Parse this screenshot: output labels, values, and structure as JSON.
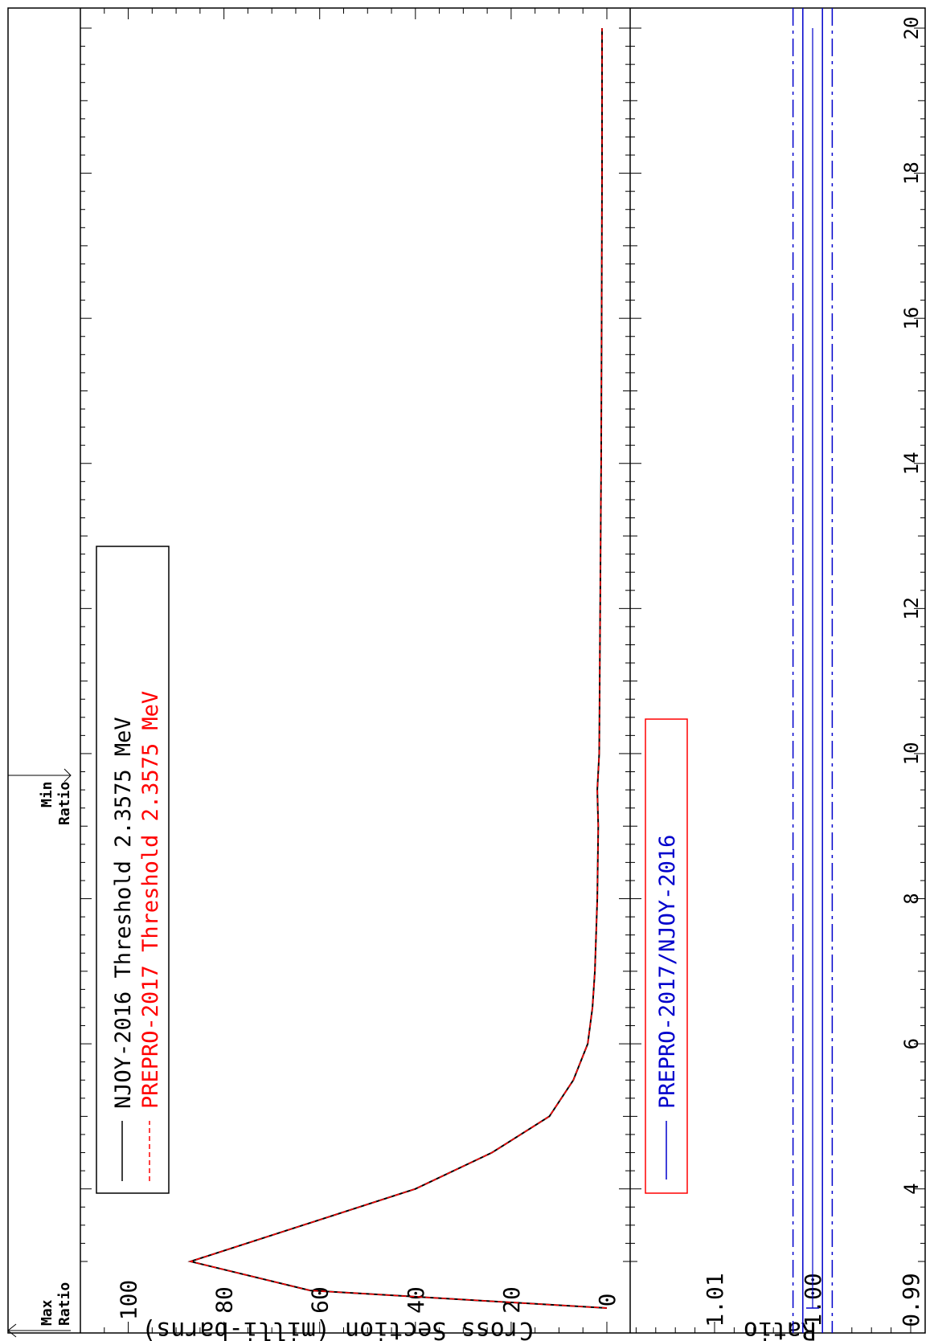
{
  "chart_data": [
    {
      "type": "line",
      "ylabel": "Cross Section (milli-barns)",
      "xlim": [
        2.3575,
        20
      ],
      "ylim": [
        0,
        110
      ],
      "x_ticks": [
        "4",
        "6",
        "8",
        "10",
        "12",
        "14",
        "16",
        "18",
        "20"
      ],
      "y_ticks": [
        "0",
        "20",
        "40",
        "60",
        "80",
        "100"
      ],
      "series": [
        {
          "name": "NJOY-2016 Threshold 2.3575 MeV",
          "color": "#000000",
          "style": "solid",
          "x": [
            2.3575,
            2.6,
            3.0,
            4.0,
            4.5,
            5.0,
            5.5,
            6.0,
            6.5,
            7.0,
            8.0,
            9.0,
            9.5,
            10.0,
            12.0,
            14.0,
            16.0,
            18.0,
            20.0
          ],
          "y": [
            0,
            62,
            87,
            40,
            24,
            12,
            7,
            4,
            3,
            2.5,
            2,
            1.8,
            2,
            1.6,
            1.4,
            1.2,
            1.1,
            1.0,
            1.0
          ]
        },
        {
          "name": "PREPRO-2017 Threshold 2.3575 MeV",
          "color": "#ff0000",
          "style": "dashed",
          "x": [
            2.3575,
            2.6,
            3.0,
            4.0,
            4.5,
            5.0,
            5.5,
            6.0,
            6.5,
            7.0,
            8.0,
            9.0,
            9.5,
            10.0,
            12.0,
            14.0,
            16.0,
            18.0,
            20.0
          ],
          "y": [
            0,
            62,
            87,
            40,
            24,
            12,
            7,
            4,
            3,
            2.5,
            2,
            1.8,
            2,
            1.6,
            1.4,
            1.2,
            1.1,
            1.0,
            1.0
          ]
        }
      ]
    },
    {
      "type": "line",
      "ylabel": "Ratio",
      "xlim": [
        2.3575,
        20
      ],
      "ylim": [
        0.985,
        1.02
      ],
      "y_ticks": [
        "0.99",
        "1.00",
        "1.01"
      ],
      "series": [
        {
          "name": "PREPRO-2017/NJOY-2016",
          "color": "#0000cc",
          "style": "solid",
          "x": [
            2.3575,
            20
          ],
          "y": [
            1.0,
            1.0
          ]
        }
      ],
      "reference_lines": [
        {
          "y": 1.001,
          "style": "solid"
        },
        {
          "y": 0.999,
          "style": "solid"
        },
        {
          "y": 1.002,
          "style": "dash-dot"
        },
        {
          "y": 0.998,
          "style": "dash-dot"
        }
      ]
    }
  ],
  "annotations": {
    "max_ratio": [
      "Max",
      "Ratio"
    ],
    "min_ratio": [
      "Min",
      "Ratio"
    ],
    "min_ratio_energy": 9.7
  }
}
